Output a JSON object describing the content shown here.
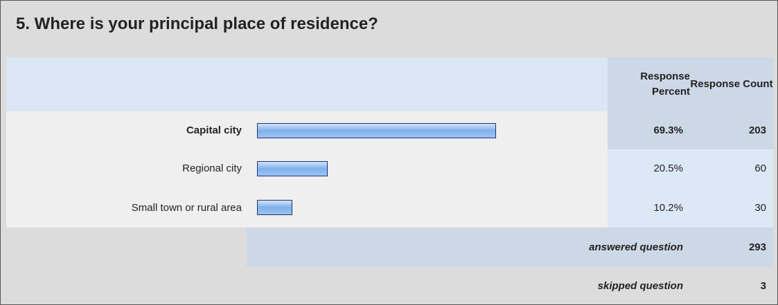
{
  "chart_data": {
    "type": "bar",
    "title": "5. Where is your principal place of residence?",
    "column_headers": [
      "Response Percent",
      "Response Count"
    ],
    "categories": [
      "Capital city",
      "Regional city",
      "Small town or rural area"
    ],
    "values": [
      69.3,
      20.5,
      10.2
    ],
    "value_labels": [
      "69.3%",
      "20.5%",
      "10.2%"
    ],
    "counts": [
      203,
      60,
      30
    ],
    "answered_label": "answered question",
    "answered": 293,
    "skipped_label": "skipped question",
    "skipped": 3
  }
}
